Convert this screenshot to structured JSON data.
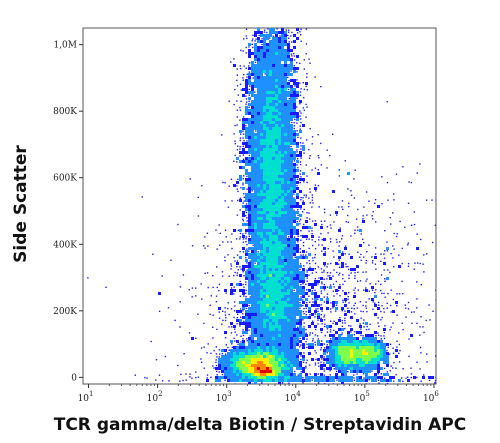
{
  "chart_data": {
    "type": "scatter",
    "subtype": "flow-cytometry-density-dot-plot",
    "xlabel": "TCR gamma/delta Biotin / Streptavidin APC",
    "ylabel": "Side Scatter",
    "x_scale": "log",
    "y_scale": "linear",
    "xlim": [
      10,
      1000000
    ],
    "ylim": [
      -20000,
      1050000
    ],
    "x_ticks": [
      {
        "value": 10,
        "base": "10",
        "exp": "1"
      },
      {
        "value": 100,
        "base": "10",
        "exp": "2"
      },
      {
        "value": 1000,
        "base": "10",
        "exp": "3"
      },
      {
        "value": 10000,
        "base": "10",
        "exp": "4"
      },
      {
        "value": 100000,
        "base": "10",
        "exp": "5"
      },
      {
        "value": 1000000,
        "base": "10",
        "exp": "6"
      }
    ],
    "y_ticks": [
      {
        "value": 0,
        "label": "0"
      },
      {
        "value": 200000,
        "label": "200K"
      },
      {
        "value": 400000,
        "label": "400K"
      },
      {
        "value": 600000,
        "label": "600K"
      },
      {
        "value": 800000,
        "label": "800K"
      },
      {
        "value": 1000000,
        "label": "1,0M"
      }
    ],
    "color_scale": [
      "#1a1aff",
      "#1e90ff",
      "#00e0d0",
      "#7cff4a",
      "#ffee00",
      "#ff8800",
      "#e00000"
    ],
    "populations": [
      {
        "x_log10": 3.65,
        "y": 620000,
        "sd_x_log10": 0.18,
        "sd_y": 230000,
        "weight": 0.42
      },
      {
        "x_log10": 3.7,
        "y": 230000,
        "sd_x_log10": 0.2,
        "sd_y": 90000,
        "weight": 0.14
      },
      {
        "x_log10": 3.45,
        "y": 40000,
        "sd_x_log10": 0.22,
        "sd_y": 22000,
        "weight": 0.18
      },
      {
        "x_log10": 3.55,
        "y": 18000,
        "sd_x_log10": 0.1,
        "sd_y": 9000,
        "weight": 0.05
      },
      {
        "x_log10": 4.75,
        "y": 70000,
        "sd_x_log10": 0.12,
        "sd_y": 22000,
        "weight": 0.07
      },
      {
        "x_log10": 5.05,
        "y": 72000,
        "sd_x_log10": 0.12,
        "sd_y": 22000,
        "weight": 0.06
      },
      {
        "x_log10": 4.3,
        "y": 160000,
        "sd_x_log10": 0.85,
        "sd_y": 210000,
        "weight": 0.08
      }
    ]
  }
}
